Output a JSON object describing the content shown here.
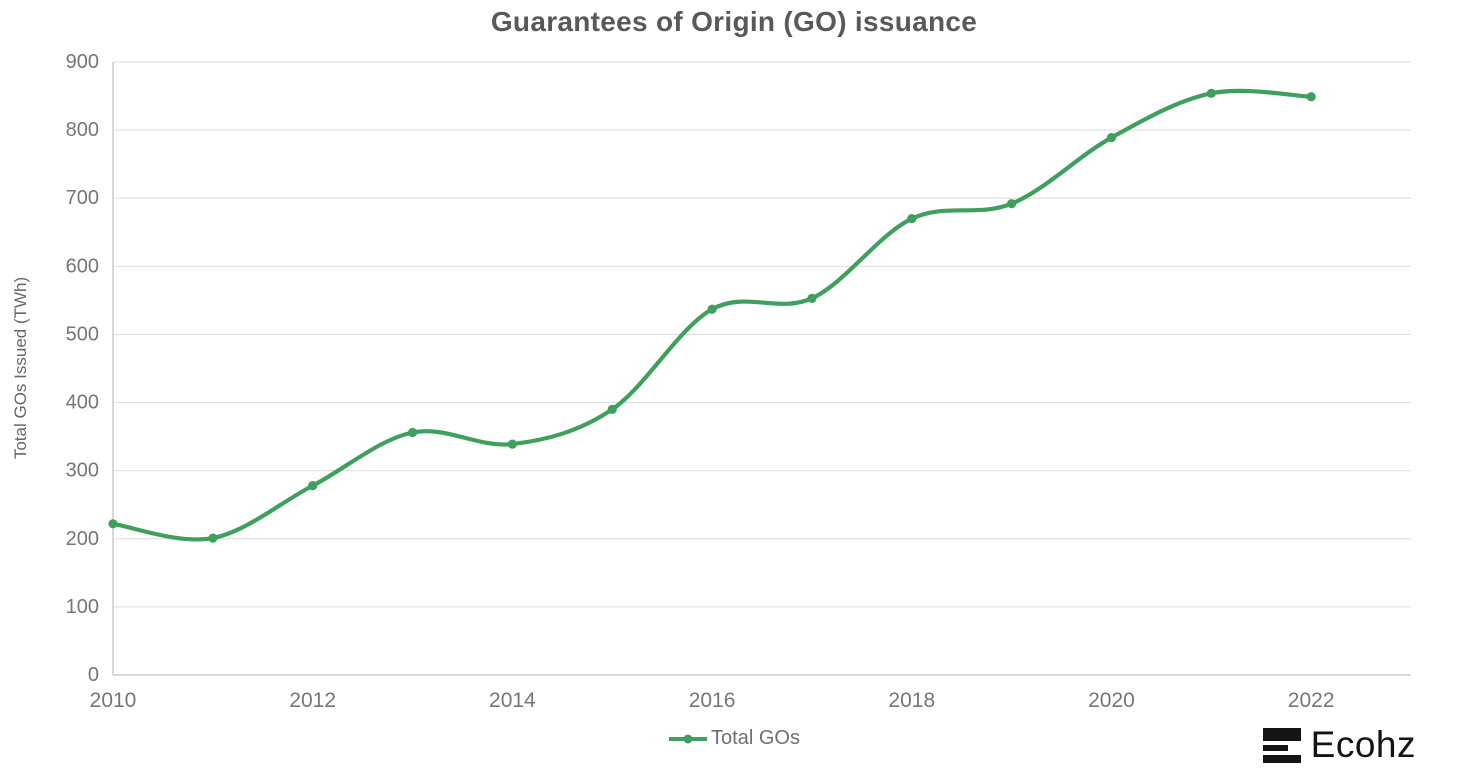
{
  "chart_data": {
    "type": "line",
    "title": "Guarantees of Origin (GO) issuance",
    "xlabel": "",
    "ylabel": "Total GOs Issued (TWh)",
    "x": [
      2010,
      2011,
      2012,
      2013,
      2014,
      2015,
      2016,
      2017,
      2018,
      2019,
      2020,
      2021,
      2022
    ],
    "series": [
      {
        "name": "Total GOs",
        "values": [
          222,
          201,
          278,
          356,
          339,
          390,
          537,
          553,
          670,
          692,
          789,
          854,
          849
        ],
        "color": "#3ea05c"
      }
    ],
    "xlim": [
      2010,
      2023
    ],
    "ylim": [
      0,
      900
    ],
    "x_ticks": [
      2010,
      2012,
      2014,
      2016,
      2018,
      2020,
      2022
    ],
    "y_ticks": [
      0,
      100,
      200,
      300,
      400,
      500,
      600,
      700,
      800,
      900
    ],
    "grid": "horizontal",
    "legend_position": "bottom-center"
  },
  "legend": {
    "marker": "line-with-dot"
  },
  "branding": {
    "logo_text": "Ecohz",
    "logo_icon": "three-horizontal-bars",
    "logo_color": "#141414"
  },
  "colors": {
    "line": "#3ea05c",
    "gridline": "#dedede",
    "axis": "#c4c4c4",
    "title_text": "#595959",
    "tick_text": "#767676"
  }
}
